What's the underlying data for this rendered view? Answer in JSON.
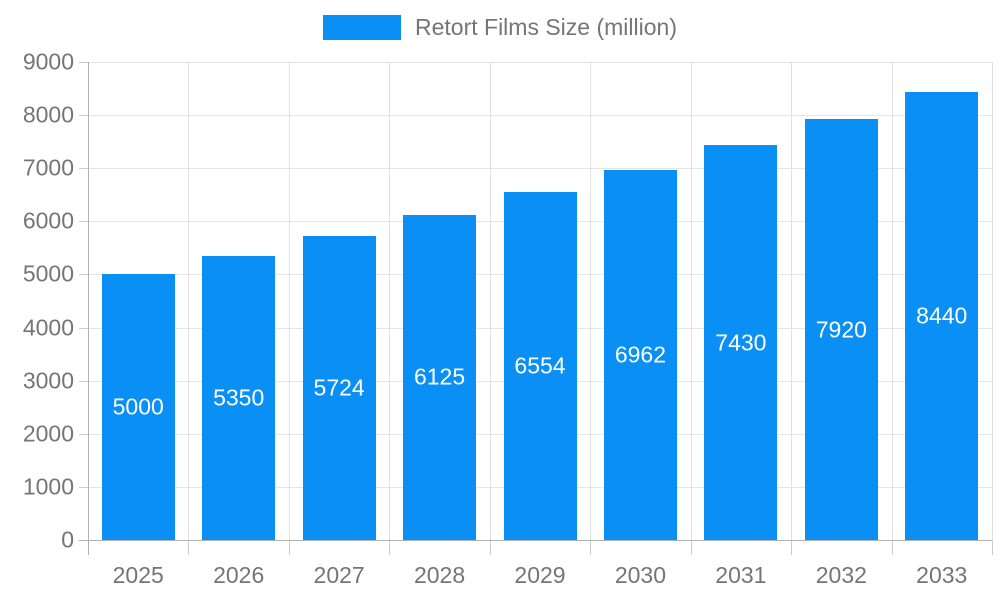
{
  "chart_data": {
    "type": "bar",
    "title": "Retort Films Size (million)",
    "legend": {
      "label": "Retort Films Size (million)",
      "position": "top"
    },
    "categories": [
      "2025",
      "2026",
      "2027",
      "2028",
      "2029",
      "2030",
      "2031",
      "2032",
      "2033"
    ],
    "series": [
      {
        "name": "Retort Films Size (million)",
        "values": [
          5000,
          5350,
          5724,
          6125,
          6554,
          6962,
          7430,
          7920,
          8440
        ]
      }
    ],
    "xlabel": "",
    "ylabel": "",
    "ylim": [
      0,
      9000
    ],
    "ytick_step": 1000,
    "grid": true,
    "colors": {
      "bar": "#0A8FF5",
      "bar_label": "#ffffff",
      "axis_text": "#757575",
      "gridline": "#e6e6e6",
      "axis_line": "#b0b0b0"
    }
  }
}
